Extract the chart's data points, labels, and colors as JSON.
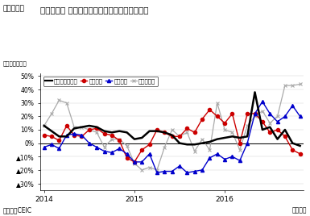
{
  "title": "フィリピン 工業生産量指数（業種別）の伸び率",
  "subtitle": "（図表５）",
  "ylabel": "（前年同月比）",
  "xlabel_right": "（月次）",
  "source": "（資料）CEIC",
  "ylim": [
    -35,
    52
  ],
  "yticks": [
    -30,
    -20,
    -10,
    0,
    10,
    20,
    30,
    40,
    50
  ],
  "ytick_labels": [
    "▲30%",
    "▲20%",
    "▲10%",
    "0%",
    "10%",
    "20%",
    "30%",
    "40%",
    "50%"
  ],
  "xtick_labels": [
    "2014",
    "2015",
    "2016"
  ],
  "legend_labels": [
    "工業生産量指数",
    "電気機械",
    "食品加工",
    "機械・設備"
  ],
  "x_industrial": [
    0,
    1,
    2,
    3,
    4,
    5,
    6,
    7,
    8,
    9,
    10,
    11,
    12,
    13,
    14,
    15,
    16,
    17,
    18,
    19,
    20,
    21,
    22,
    23,
    24,
    25,
    26,
    27,
    28,
    29,
    30,
    31,
    32,
    33,
    34
  ],
  "y_industrial": [
    13,
    9,
    5,
    5,
    11,
    12,
    13,
    12,
    9,
    8,
    9,
    8,
    3,
    4,
    9,
    9,
    8,
    6,
    0,
    -1,
    -1,
    0,
    1,
    3,
    4,
    5,
    4,
    5,
    38,
    10,
    12,
    3,
    10,
    0,
    -2
  ],
  "x_electric": [
    0,
    1,
    2,
    3,
    4,
    5,
    6,
    7,
    8,
    9,
    10,
    11,
    12,
    13,
    14,
    15,
    16,
    17,
    18,
    19,
    20,
    21,
    22,
    23,
    24,
    25,
    26,
    27,
    28,
    29,
    30,
    31,
    32,
    33,
    34
  ],
  "y_electric": [
    6,
    5,
    2,
    13,
    6,
    5,
    10,
    11,
    7,
    6,
    2,
    -11,
    -14,
    -5,
    -1,
    10,
    8,
    5,
    5,
    11,
    8,
    18,
    25,
    20,
    15,
    22,
    0,
    22,
    22,
    16,
    8,
    10,
    5,
    -5,
    -8
  ],
  "x_food": [
    0,
    1,
    2,
    3,
    4,
    5,
    6,
    7,
    8,
    9,
    10,
    11,
    12,
    13,
    14,
    15,
    16,
    17,
    18,
    19,
    20,
    21,
    22,
    23,
    24,
    25,
    26,
    27,
    28,
    29,
    30,
    31,
    32,
    33,
    34
  ],
  "y_food": [
    -3,
    -1,
    -4,
    6,
    7,
    6,
    0,
    -3,
    -6,
    -7,
    -4,
    -8,
    -14,
    -14,
    -8,
    -22,
    -21,
    -21,
    -17,
    -22,
    -21,
    -20,
    -11,
    -8,
    -12,
    -10,
    -13,
    0,
    22,
    31,
    22,
    16,
    20,
    28,
    20
  ],
  "x_machinery": [
    0,
    1,
    2,
    3,
    4,
    5,
    6,
    7,
    8,
    9,
    10,
    11,
    12,
    13,
    14,
    15,
    16,
    17,
    18,
    19,
    20,
    21,
    22,
    23,
    24,
    25,
    26,
    27,
    28,
    29,
    30,
    31,
    32,
    33,
    34
  ],
  "y_machinery": [
    13,
    22,
    32,
    30,
    12,
    12,
    10,
    8,
    -3,
    3,
    3,
    -2,
    -15,
    -20,
    -18,
    -20,
    -3,
    10,
    5,
    8,
    -6,
    3,
    -5,
    30,
    10,
    8,
    -5,
    13,
    20,
    24,
    15,
    20,
    43,
    43,
    44
  ],
  "color_industrial": "#000000",
  "color_electric": "#cc0000",
  "color_food": "#0000cc",
  "color_machinery": "#aaaaaa",
  "background_color": "#ffffff",
  "xtick_positions": [
    0,
    12,
    24
  ]
}
